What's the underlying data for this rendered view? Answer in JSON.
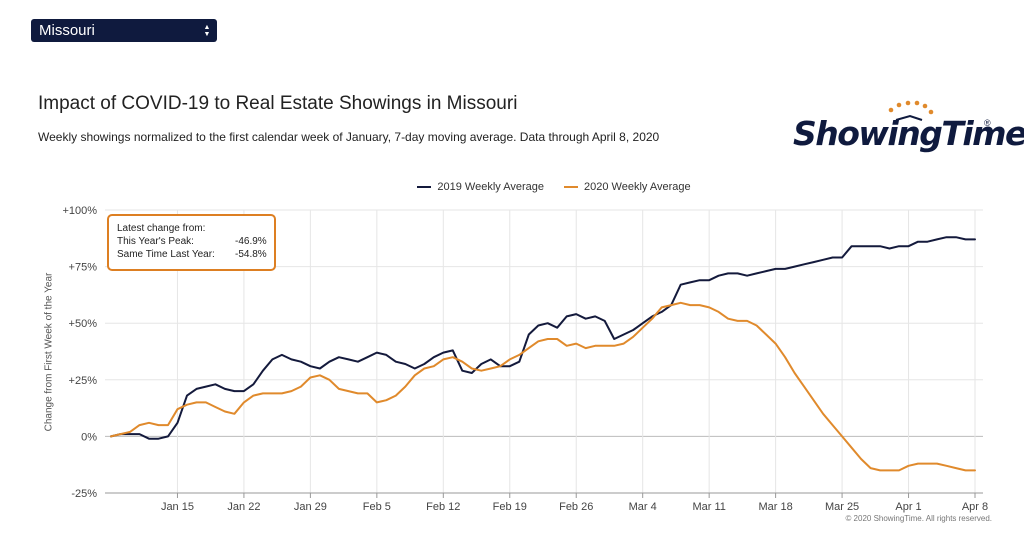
{
  "state_selector": {
    "value": "Missouri"
  },
  "header": {
    "title": "Impact of COVID-19 to Real Estate Showings in Missouri",
    "subtitle": "Weekly showings normalized to the first calendar week of January, 7-day moving average. Data through April 8, 2020"
  },
  "logo": {
    "text": "ShowingTime",
    "registered": "®"
  },
  "tooltip": {
    "heading": "Latest change from:",
    "peak_label": "This Year's Peak:",
    "peak_value": "-46.9%",
    "last_year_label": "Same Time Last Year:",
    "last_year_value": "-54.8%"
  },
  "copyright": "© 2020 ShowingTime. All rights reserved.",
  "colors": {
    "series_2019": "#141a3c",
    "series_2020": "#e08a2c",
    "grid": "#e6e6e6",
    "zero_line": "#bbbbbb"
  },
  "chart_data": {
    "type": "line",
    "ylabel": "Change from First Week of the Year",
    "ylim": [
      -25,
      100
    ],
    "yticks": [
      -25,
      0,
      25,
      50,
      75,
      100
    ],
    "ytick_labels": [
      "-25%",
      "0%",
      "+25%",
      "+50%",
      "+75%",
      "+100%"
    ],
    "xlim": [
      "2020-01-08",
      "2020-04-08"
    ],
    "xticks": [
      "2020-01-15",
      "2020-01-22",
      "2020-01-29",
      "2020-02-05",
      "2020-02-12",
      "2020-02-19",
      "2020-02-26",
      "2020-03-04",
      "2020-03-11",
      "2020-03-18",
      "2020-03-25",
      "2020-04-01",
      "2020-04-08"
    ],
    "xtick_labels": [
      "Jan 15",
      "Jan 22",
      "Jan 29",
      "Feb 5",
      "Feb 12",
      "Feb 19",
      "Feb 26",
      "Mar 4",
      "Mar 11",
      "Mar 18",
      "Mar 25",
      "Apr 1",
      "Apr 8"
    ],
    "legend": "top-center",
    "grid": true,
    "series": [
      {
        "name": "2019 Weekly Average",
        "color": "#141a3c",
        "points": [
          [
            "2020-01-08",
            0
          ],
          [
            "2020-01-09",
            1
          ],
          [
            "2020-01-10",
            1
          ],
          [
            "2020-01-11",
            1
          ],
          [
            "2020-01-12",
            -1
          ],
          [
            "2020-01-13",
            -1
          ],
          [
            "2020-01-14",
            0
          ],
          [
            "2020-01-15",
            6
          ],
          [
            "2020-01-16",
            18
          ],
          [
            "2020-01-17",
            21
          ],
          [
            "2020-01-18",
            22
          ],
          [
            "2020-01-19",
            23
          ],
          [
            "2020-01-20",
            21
          ],
          [
            "2020-01-21",
            20
          ],
          [
            "2020-01-22",
            20
          ],
          [
            "2020-01-23",
            23
          ],
          [
            "2020-01-24",
            29
          ],
          [
            "2020-01-25",
            34
          ],
          [
            "2020-01-26",
            36
          ],
          [
            "2020-01-27",
            34
          ],
          [
            "2020-01-28",
            33
          ],
          [
            "2020-01-29",
            31
          ],
          [
            "2020-01-30",
            30
          ],
          [
            "2020-01-31",
            33
          ],
          [
            "2020-02-01",
            35
          ],
          [
            "2020-02-02",
            34
          ],
          [
            "2020-02-03",
            33
          ],
          [
            "2020-02-04",
            35
          ],
          [
            "2020-02-05",
            37
          ],
          [
            "2020-02-06",
            36
          ],
          [
            "2020-02-07",
            33
          ],
          [
            "2020-02-08",
            32
          ],
          [
            "2020-02-09",
            30
          ],
          [
            "2020-02-10",
            32
          ],
          [
            "2020-02-11",
            35
          ],
          [
            "2020-02-12",
            37
          ],
          [
            "2020-02-13",
            38
          ],
          [
            "2020-02-14",
            29
          ],
          [
            "2020-02-15",
            28
          ],
          [
            "2020-02-16",
            32
          ],
          [
            "2020-02-17",
            34
          ],
          [
            "2020-02-18",
            31
          ],
          [
            "2020-02-19",
            31
          ],
          [
            "2020-02-20",
            33
          ],
          [
            "2020-02-21",
            45
          ],
          [
            "2020-02-22",
            49
          ],
          [
            "2020-02-23",
            50
          ],
          [
            "2020-02-24",
            48
          ],
          [
            "2020-02-25",
            53
          ],
          [
            "2020-02-26",
            54
          ],
          [
            "2020-02-27",
            52
          ],
          [
            "2020-02-28",
            53
          ],
          [
            "2020-02-29",
            51
          ],
          [
            "2020-03-01",
            43
          ],
          [
            "2020-03-02",
            45
          ],
          [
            "2020-03-03",
            47
          ],
          [
            "2020-03-04",
            50
          ],
          [
            "2020-03-05",
            53
          ],
          [
            "2020-03-06",
            55
          ],
          [
            "2020-03-07",
            58
          ],
          [
            "2020-03-08",
            67
          ],
          [
            "2020-03-09",
            68
          ],
          [
            "2020-03-10",
            69
          ],
          [
            "2020-03-11",
            69
          ],
          [
            "2020-03-12",
            71
          ],
          [
            "2020-03-13",
            72
          ],
          [
            "2020-03-14",
            72
          ],
          [
            "2020-03-15",
            71
          ],
          [
            "2020-03-16",
            72
          ],
          [
            "2020-03-17",
            73
          ],
          [
            "2020-03-18",
            74
          ],
          [
            "2020-03-19",
            74
          ],
          [
            "2020-03-20",
            75
          ],
          [
            "2020-03-21",
            76
          ],
          [
            "2020-03-22",
            77
          ],
          [
            "2020-03-23",
            78
          ],
          [
            "2020-03-24",
            79
          ],
          [
            "2020-03-25",
            79
          ],
          [
            "2020-03-26",
            84
          ],
          [
            "2020-03-27",
            84
          ],
          [
            "2020-03-28",
            84
          ],
          [
            "2020-03-29",
            84
          ],
          [
            "2020-03-30",
            83
          ],
          [
            "2020-03-31",
            84
          ],
          [
            "2020-04-01",
            84
          ],
          [
            "2020-04-02",
            86
          ],
          [
            "2020-04-03",
            86
          ],
          [
            "2020-04-04",
            87
          ],
          [
            "2020-04-05",
            88
          ],
          [
            "2020-04-06",
            88
          ],
          [
            "2020-04-07",
            87
          ],
          [
            "2020-04-08",
            87
          ]
        ]
      },
      {
        "name": "2020 Weekly Average",
        "color": "#e08a2c",
        "points": [
          [
            "2020-01-08",
            0
          ],
          [
            "2020-01-09",
            1
          ],
          [
            "2020-01-10",
            2
          ],
          [
            "2020-01-11",
            5
          ],
          [
            "2020-01-12",
            6
          ],
          [
            "2020-01-13",
            5
          ],
          [
            "2020-01-14",
            5
          ],
          [
            "2020-01-15",
            12
          ],
          [
            "2020-01-16",
            14
          ],
          [
            "2020-01-17",
            15
          ],
          [
            "2020-01-18",
            15
          ],
          [
            "2020-01-19",
            13
          ],
          [
            "2020-01-20",
            11
          ],
          [
            "2020-01-21",
            10
          ],
          [
            "2020-01-22",
            15
          ],
          [
            "2020-01-23",
            18
          ],
          [
            "2020-01-24",
            19
          ],
          [
            "2020-01-25",
            19
          ],
          [
            "2020-01-26",
            19
          ],
          [
            "2020-01-27",
            20
          ],
          [
            "2020-01-28",
            22
          ],
          [
            "2020-01-29",
            26
          ],
          [
            "2020-01-30",
            27
          ],
          [
            "2020-01-31",
            25
          ],
          [
            "2020-02-01",
            21
          ],
          [
            "2020-02-02",
            20
          ],
          [
            "2020-02-03",
            19
          ],
          [
            "2020-02-04",
            19
          ],
          [
            "2020-02-05",
            15
          ],
          [
            "2020-02-06",
            16
          ],
          [
            "2020-02-07",
            18
          ],
          [
            "2020-02-08",
            22
          ],
          [
            "2020-02-09",
            27
          ],
          [
            "2020-02-10",
            30
          ],
          [
            "2020-02-11",
            31
          ],
          [
            "2020-02-12",
            34
          ],
          [
            "2020-02-13",
            35
          ],
          [
            "2020-02-14",
            33
          ],
          [
            "2020-02-15",
            30
          ],
          [
            "2020-02-16",
            29
          ],
          [
            "2020-02-17",
            30
          ],
          [
            "2020-02-18",
            31
          ],
          [
            "2020-02-19",
            34
          ],
          [
            "2020-02-20",
            36
          ],
          [
            "2020-02-21",
            39
          ],
          [
            "2020-02-22",
            42
          ],
          [
            "2020-02-23",
            43
          ],
          [
            "2020-02-24",
            43
          ],
          [
            "2020-02-25",
            40
          ],
          [
            "2020-02-26",
            41
          ],
          [
            "2020-02-27",
            39
          ],
          [
            "2020-02-28",
            40
          ],
          [
            "2020-02-29",
            40
          ],
          [
            "2020-03-01",
            40
          ],
          [
            "2020-03-02",
            41
          ],
          [
            "2020-03-03",
            44
          ],
          [
            "2020-03-04",
            48
          ],
          [
            "2020-03-05",
            52
          ],
          [
            "2020-03-06",
            57
          ],
          [
            "2020-03-07",
            58
          ],
          [
            "2020-03-08",
            59
          ],
          [
            "2020-03-09",
            58
          ],
          [
            "2020-03-10",
            58
          ],
          [
            "2020-03-11",
            57
          ],
          [
            "2020-03-12",
            55
          ],
          [
            "2020-03-13",
            52
          ],
          [
            "2020-03-14",
            51
          ],
          [
            "2020-03-15",
            51
          ],
          [
            "2020-03-16",
            49
          ],
          [
            "2020-03-17",
            45
          ],
          [
            "2020-03-18",
            41
          ],
          [
            "2020-03-19",
            35
          ],
          [
            "2020-03-20",
            28
          ],
          [
            "2020-03-21",
            22
          ],
          [
            "2020-03-22",
            16
          ],
          [
            "2020-03-23",
            10
          ],
          [
            "2020-03-24",
            5
          ],
          [
            "2020-03-25",
            0
          ],
          [
            "2020-03-26",
            -5
          ],
          [
            "2020-03-27",
            -10
          ],
          [
            "2020-03-28",
            -14
          ],
          [
            "2020-03-29",
            -15
          ],
          [
            "2020-03-30",
            -15
          ],
          [
            "2020-03-31",
            -15
          ],
          [
            "2020-04-01",
            -13
          ],
          [
            "2020-04-02",
            -12
          ],
          [
            "2020-04-03",
            -12
          ],
          [
            "2020-04-04",
            -12
          ],
          [
            "2020-04-05",
            -13
          ],
          [
            "2020-04-06",
            -14
          ],
          [
            "2020-04-07",
            -15
          ],
          [
            "2020-04-08",
            -15
          ]
        ]
      }
    ]
  }
}
